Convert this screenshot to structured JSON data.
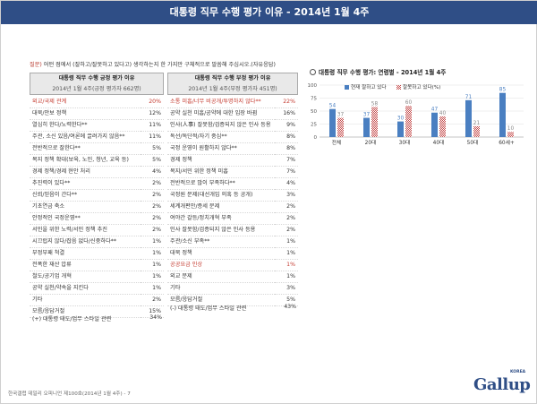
{
  "header": {
    "title": "대통령 직무 수행 평가 이유 - 2014년 1월 4주"
  },
  "question": {
    "mark": "질문)",
    "text": "어떤 점에서 (잘하고/잘못하고 있다고) 생각하는지 한 가지만 구체적으로 말씀해 주십시오.(자유응답)"
  },
  "positive": {
    "title": "대통령 직무 수행 긍정 평가 이유",
    "subtitle": "2014년 1월 4주(긍정 평가자 662명)",
    "rows": [
      {
        "label": "외교/국제 관계",
        "pct": "20%",
        "hl": true
      },
      {
        "label": "대북/안보 정책",
        "pct": "12%"
      },
      {
        "label": "열심히 한다/노력한다**",
        "pct": "11%"
      },
      {
        "label": "주관, 소신 있음/여론에 끌려가지 않음**",
        "pct": "11%"
      },
      {
        "label": "전반적으로 잘한다**",
        "pct": "5%"
      },
      {
        "label": "복지 정책 확대(보육, 노인, 청년, 교육 등)",
        "pct": "5%"
      },
      {
        "label": "경제 정책/경제 현안 처리",
        "pct": "4%"
      },
      {
        "label": "추진력이 있다**",
        "pct": "2%"
      },
      {
        "label": "신뢰/믿음이 간다**",
        "pct": "2%"
      },
      {
        "label": "기초연금 축소",
        "pct": "2%"
      },
      {
        "label": "안정적인 국정운영**",
        "pct": "2%"
      },
      {
        "label": "서민을 위한 노력/서민 정책 추진",
        "pct": "2%"
      },
      {
        "label": "시끄럽지 않다/잡음 없다/신중하다**",
        "pct": "1%"
      },
      {
        "label": "부정부패 척결",
        "pct": "1%"
      },
      {
        "label": "전폭한 재산 압류",
        "pct": "1%"
      },
      {
        "label": "철도/공기업 개혁",
        "pct": "1%"
      },
      {
        "label": "공약 실천/약속을 지킨다",
        "pct": "1%"
      },
      {
        "label": "기타",
        "pct": "2%"
      },
      {
        "label": "모름/응답거절",
        "pct": "15%"
      }
    ],
    "summary_label": "(+) 대통령 태도/업무 스타일 관련",
    "summary_pct": "34%"
  },
  "negative": {
    "title": "대통령 직무 수행 부정 평가 이유",
    "subtitle": "2014년 1월 4주(부정 평가자 451명)",
    "rows": [
      {
        "label": "소통 미흡/너무 비공개/투명하지 않다**",
        "pct": "22%",
        "hl": true
      },
      {
        "label": "공약 실천 미흡/공약에 대한 입장 바뀜",
        "pct": "16%"
      },
      {
        "label": "인사(人事) 잘못함/검증되지 않은 인사 등용",
        "pct": "9%"
      },
      {
        "label": "독선/독단적/자기 중심**",
        "pct": "8%"
      },
      {
        "label": "국정 운영이 원활하지 않다**",
        "pct": "8%"
      },
      {
        "label": "경제 정책",
        "pct": "7%"
      },
      {
        "label": "복지/서민 위한 정책 미흡",
        "pct": "7%"
      },
      {
        "label": "전반적으로 많이 부족하다**",
        "pct": "4%"
      },
      {
        "label": "국정원 문제(대선개입 의혹 등 공개)",
        "pct": "3%"
      },
      {
        "label": "세계개편안/증세 문제",
        "pct": "2%"
      },
      {
        "label": "여야간 갈등/정치개혁 부족",
        "pct": "2%"
      },
      {
        "label": "인사 잘못함/검증되지 않은 인사 등용",
        "pct": "2%"
      },
      {
        "label": "주관/소신 부족**",
        "pct": "1%"
      },
      {
        "label": "대북 정책",
        "pct": "1%"
      },
      {
        "label": "공공요금 인상",
        "pct": "1%",
        "hl": true
      },
      {
        "label": "외교 문제",
        "pct": "1%"
      },
      {
        "label": "기타",
        "pct": "3%"
      },
      {
        "label": "모름/응답거절",
        "pct": "5%"
      }
    ],
    "summary_label": "(-) 대통령 태도/업무 스타일 관련",
    "summary_pct": "43%"
  },
  "colors": {
    "blue": "#4a7fc1",
    "red": "#c44a4a",
    "header": "#2f4e86"
  },
  "chart_data": {
    "type": "bar",
    "title": "대통령 직무 수행 평가: 연령별 - 2014년 1월 4주",
    "categories": [
      "전체",
      "20대",
      "30대",
      "40대",
      "50대",
      "60세+"
    ],
    "series": [
      {
        "name": "현재 잘하고 있다",
        "values": [
          54,
          37,
          30,
          47,
          71,
          85
        ]
      },
      {
        "name": "잘못하고 있다(%)",
        "values": [
          37,
          58,
          60,
          40,
          21,
          10
        ]
      }
    ],
    "ylim": [
      0,
      100
    ],
    "yticks": [
      0,
      25,
      50,
      75,
      100
    ],
    "legend": "top",
    "grid": true
  }
}
